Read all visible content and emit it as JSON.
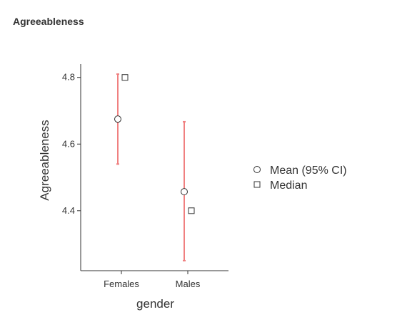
{
  "page": {
    "heading": "Agreeableness"
  },
  "chart_data": {
    "type": "scatter",
    "title": "",
    "xlabel": "gender",
    "ylabel": "Agreeableness",
    "categories": [
      "Females",
      "Males"
    ],
    "ylim": [
      4.22,
      4.84
    ],
    "yticks": [
      4.4,
      4.6,
      4.8
    ],
    "ytick_labels": [
      "4.4",
      "4.6",
      "4.8"
    ],
    "grid": false,
    "legend_position": "right",
    "series": [
      {
        "name": "Mean (95% CI)",
        "marker": "circle",
        "values": [
          4.675,
          4.457
        ],
        "ci_lower": [
          4.54,
          4.25
        ],
        "ci_upper": [
          4.81,
          4.667
        ]
      },
      {
        "name": "Median",
        "marker": "square",
        "values": [
          4.8,
          4.4
        ]
      }
    ],
    "colors": {
      "error_bar": "#f08080",
      "marker_edge": "#333333",
      "marker_fill": "#ffffff",
      "axis": "#333333"
    }
  }
}
